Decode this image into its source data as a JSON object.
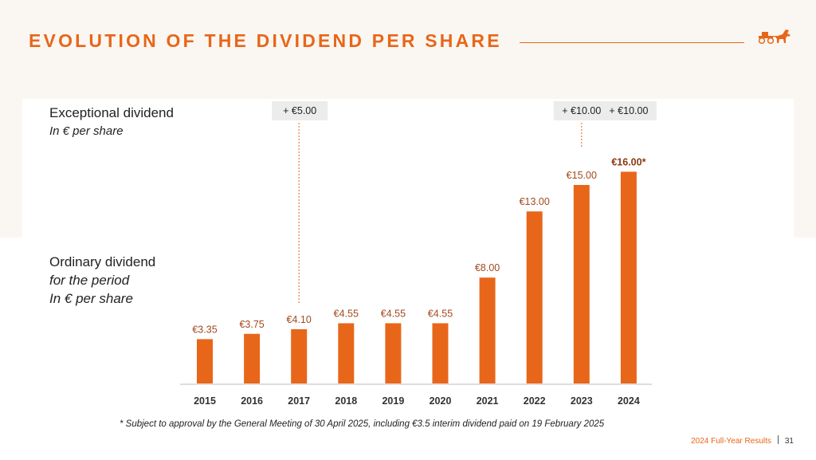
{
  "page": {
    "title": "EVOLUTION OF THE DIVIDEND PER SHARE",
    "footnote": "* Subject to approval by the General Meeting of 30 April 2025, including €3.5 interim dividend paid on 19 February 2025",
    "footer_text": "2024 Full-Year Results",
    "page_number": "31",
    "accent_color": "#e8661a",
    "logo_icon": "horse-carriage-logo-icon"
  },
  "labels": {
    "exceptional": {
      "line1": "Exceptional dividend",
      "line2": "In € per share"
    },
    "ordinary": {
      "line1": "Ordinary dividend",
      "line2": "for the period",
      "line3": "In € per share"
    }
  },
  "chart_data": {
    "type": "bar",
    "title": "EVOLUTION OF THE DIVIDEND PER SHARE",
    "xlabel": "",
    "ylabel": "In € per share",
    "ylim": [
      0,
      16
    ],
    "grid": false,
    "categories": [
      "2015",
      "2016",
      "2017",
      "2018",
      "2019",
      "2020",
      "2021",
      "2022",
      "2023",
      "2024"
    ],
    "series": [
      {
        "name": "Ordinary dividend for the period",
        "values": [
          3.35,
          3.75,
          4.1,
          4.55,
          4.55,
          4.55,
          8.0,
          13.0,
          15.0,
          16.0
        ],
        "labels": [
          "€3.35",
          "€3.75",
          "€4.10",
          "€4.55",
          "€4.55",
          "€4.55",
          "€8.00",
          "€13.00",
          "€15.00",
          "€16.00*"
        ]
      }
    ],
    "exceptional": [
      {
        "year": "2017",
        "value": 5.0,
        "label": "+ €5.00"
      },
      {
        "year": "2023",
        "value": 10.0,
        "label": "+ €10.00"
      },
      {
        "year": "2024",
        "value": 10.0,
        "label": "+ €10.00"
      }
    ]
  }
}
